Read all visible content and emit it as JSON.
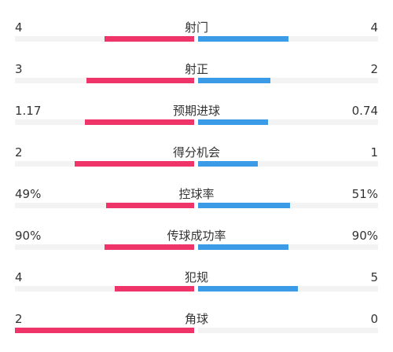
{
  "colors": {
    "home": "#ee3469",
    "away": "#3b9be6",
    "track": "#f3f3f3",
    "text": "#333333"
  },
  "stats": [
    {
      "label": "射门",
      "home": "4",
      "away": "4",
      "home_fill": 0.5,
      "away_fill": 0.5
    },
    {
      "label": "射正",
      "home": "3",
      "away": "2",
      "home_fill": 0.6,
      "away_fill": 0.4
    },
    {
      "label": "预期进球",
      "home": "1.17",
      "away": "0.74",
      "home_fill": 0.61,
      "away_fill": 0.39
    },
    {
      "label": "得分机会",
      "home": "2",
      "away": "1",
      "home_fill": 0.667,
      "away_fill": 0.333
    },
    {
      "label": "控球率",
      "home": "49%",
      "away": "51%",
      "home_fill": 0.49,
      "away_fill": 0.51
    },
    {
      "label": "传球成功率",
      "home": "90%",
      "away": "90%",
      "home_fill": 0.5,
      "away_fill": 0.5
    },
    {
      "label": "犯规",
      "home": "4",
      "away": "5",
      "home_fill": 0.444,
      "away_fill": 0.556
    },
    {
      "label": "角球",
      "home": "2",
      "away": "0",
      "home_fill": 1.0,
      "away_fill": 0.0
    }
  ]
}
